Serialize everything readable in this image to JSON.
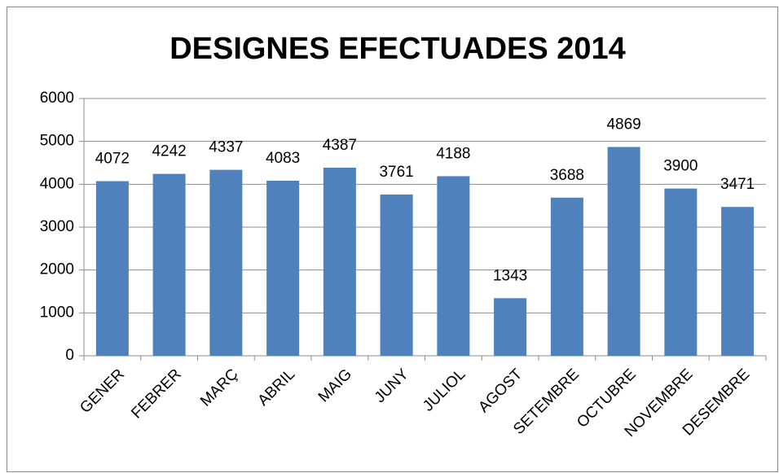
{
  "chart_data": {
    "type": "bar",
    "title": "DESIGNES EFECTUADES 2014",
    "categories": [
      "GENER",
      "FEBRER",
      "MARÇ",
      "ABRIL",
      "MAIG",
      "JUNY",
      "JULIOL",
      "AGOST",
      "SETEMBRE",
      "OCTUBRE",
      "NOVEMBRE",
      "DESEMBRE"
    ],
    "values": [
      4072,
      4242,
      4337,
      4083,
      4387,
      3761,
      4188,
      1343,
      3688,
      4869,
      3900,
      3471
    ],
    "color": "#4f81bd",
    "ylim": [
      0,
      6000
    ],
    "yticks": [
      0,
      1000,
      2000,
      3000,
      4000,
      5000,
      6000
    ],
    "grid": true
  }
}
